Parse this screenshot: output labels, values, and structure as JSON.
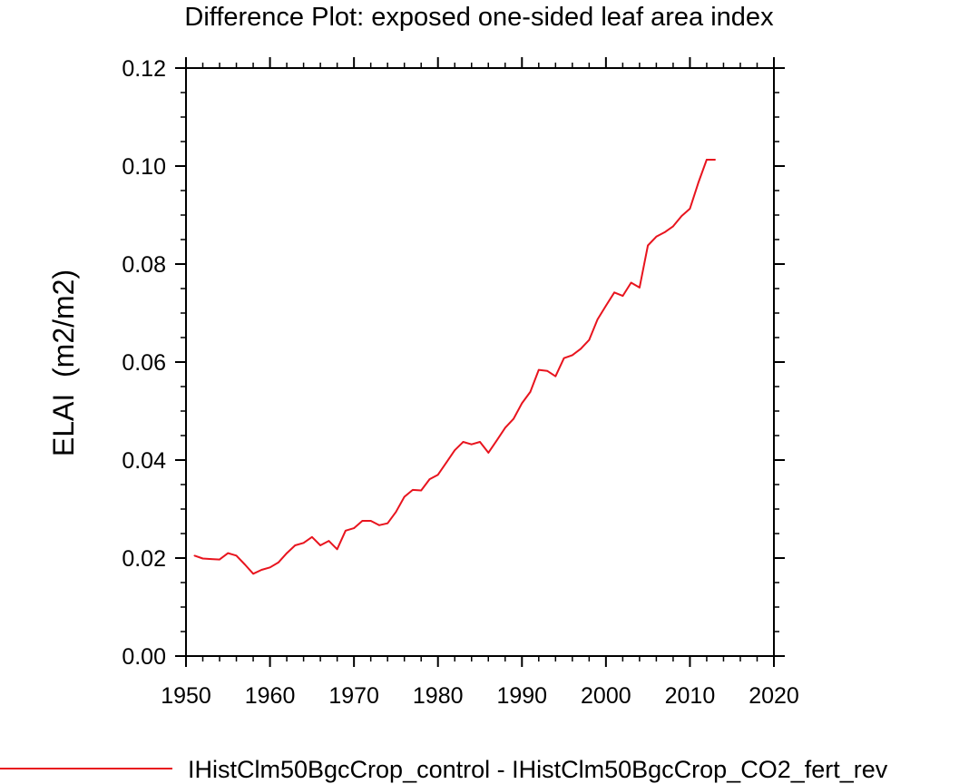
{
  "chart_data": {
    "type": "line",
    "title": "Difference Plot: exposed one-sided leaf area index",
    "ylabel": "ELAI  (m2/m2)",
    "xlabel": "",
    "xlim": [
      1950,
      2020
    ],
    "ylim": [
      0,
      0.12
    ],
    "xticks": [
      1950,
      1960,
      1970,
      1980,
      1990,
      2000,
      2010,
      2020
    ],
    "yticks": [
      "0.00",
      "0.02",
      "0.04",
      "0.06",
      "0.08",
      "0.10",
      "0.12"
    ],
    "grid": false,
    "legend_position": "bottom",
    "series": [
      {
        "name": "IHistClm50BgcCrop_control - IHistClm50BgcCrop_CO2_fert_rev",
        "color": "#e8141e",
        "x": [
          1951,
          1952,
          1953,
          1954,
          1955,
          1956,
          1957,
          1958,
          1959,
          1960,
          1961,
          1962,
          1963,
          1964,
          1965,
          1966,
          1967,
          1968,
          1969,
          1970,
          1971,
          1972,
          1973,
          1974,
          1975,
          1976,
          1977,
          1978,
          1979,
          1980,
          1981,
          1982,
          1983,
          1984,
          1985,
          1986,
          1987,
          1988,
          1989,
          1990,
          1991,
          1992,
          1993,
          1994,
          1995,
          1996,
          1997,
          1998,
          1999,
          2000,
          2001,
          2002,
          2003,
          2004,
          2005,
          2006,
          2007,
          2008,
          2009,
          2010,
          2011,
          2012,
          2013
        ],
        "y": [
          0.0205,
          0.0199,
          0.0198,
          0.0197,
          0.021,
          0.0205,
          0.0187,
          0.0168,
          0.0176,
          0.0181,
          0.0191,
          0.021,
          0.0226,
          0.0231,
          0.0243,
          0.0226,
          0.0235,
          0.0218,
          0.0256,
          0.0261,
          0.0276,
          0.0276,
          0.0267,
          0.0271,
          0.0294,
          0.0325,
          0.0339,
          0.0338,
          0.0361,
          0.037,
          0.0395,
          0.042,
          0.0437,
          0.0432,
          0.0437,
          0.0415,
          0.044,
          0.0466,
          0.0484,
          0.0516,
          0.0539,
          0.0584,
          0.0582,
          0.0571,
          0.0608,
          0.0614,
          0.0627,
          0.0645,
          0.0687,
          0.0715,
          0.0742,
          0.0735,
          0.0762,
          0.0752,
          0.0838,
          0.0856,
          0.0865,
          0.0877,
          0.0898,
          0.0913,
          0.0966,
          0.1013,
          0.1013
        ]
      }
    ]
  }
}
